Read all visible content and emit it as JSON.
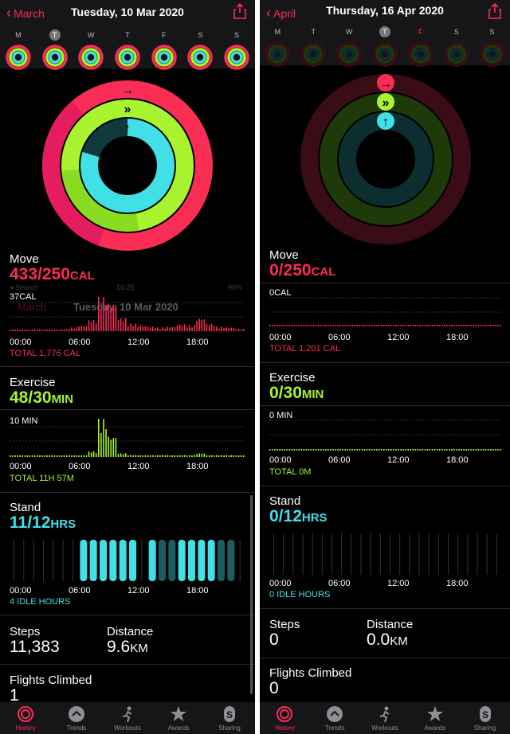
{
  "left": {
    "back_label": "March",
    "date_title": "Tuesday, 10 Mar 2020",
    "week_days": [
      "M",
      "T",
      "W",
      "T",
      "F",
      "S",
      "S"
    ],
    "today_index": 1,
    "move": {
      "title": "Move",
      "value": "433/250",
      "unit": "CAL",
      "max_label": "37CAL",
      "total": "TOTAL 1,776 CAL"
    },
    "exercise": {
      "title": "Exercise",
      "value": "48/30",
      "unit": "MIN",
      "max_label": "10 MIN",
      "total": "TOTAL 11H 57M"
    },
    "stand": {
      "title": "Stand",
      "value": "11/12",
      "unit": "HRS",
      "total": "4 IDLE HOURS"
    },
    "x_ticks": [
      "00:00",
      "06:00",
      "12:00",
      "18:00"
    ],
    "steps": {
      "label": "Steps",
      "value": "11,383"
    },
    "distance": {
      "label": "Distance",
      "value": "9.6",
      "unit": "KM"
    },
    "flights": {
      "label": "Flights Climbed",
      "value": "1"
    },
    "ghost": {
      "status_left": "◂ Search",
      "status_time": "16:25",
      "status_batt": "96%",
      "back": "March",
      "title": "Tuesday, 10 Mar 2020"
    },
    "move_hourly": [
      0.05,
      0.05,
      0.05,
      0.05,
      0.05,
      0.05,
      0.1,
      0.15,
      0.3,
      0.9,
      0.75,
      0.35,
      0.2,
      0.15,
      0.12,
      0.1,
      0.12,
      0.18,
      0.15,
      0.35,
      0.2,
      0.12,
      0.1,
      0.06
    ],
    "exercise_hourly": [
      0.02,
      0.02,
      0.02,
      0.02,
      0.02,
      0.02,
      0.03,
      0.04,
      0.15,
      1.0,
      0.55,
      0.1,
      0.05,
      0.05,
      0.05,
      0.05,
      0.05,
      0.05,
      0.05,
      0.1,
      0.05,
      0.05,
      0.05,
      0.03
    ],
    "stand_hours": [
      0,
      0,
      0,
      0,
      0,
      0,
      0,
      0,
      0,
      0,
      0,
      0,
      0,
      0,
      0,
      0,
      0,
      0,
      0,
      0,
      0,
      0,
      0,
      0
    ],
    "stand_bars": [
      1,
      1,
      1,
      1,
      1,
      1,
      0,
      1,
      0.5,
      0.5,
      1,
      1,
      1,
      1,
      0.5,
      0.5
    ]
  },
  "right": {
    "back_label": "April",
    "date_title": "Thursday, 16 Apr 2020",
    "week_days": [
      "M",
      "T",
      "W",
      "T",
      "F",
      "S",
      "S"
    ],
    "today_index": 3,
    "move": {
      "title": "Move",
      "value": "0/250",
      "unit": "CAL",
      "max_label": "0CAL",
      "total": "TOTAL 1,201 CAL"
    },
    "exercise": {
      "title": "Exercise",
      "value": "0/30",
      "unit": "MIN",
      "max_label": "0 MIN",
      "total": "TOTAL 0M"
    },
    "stand": {
      "title": "Stand",
      "value": "0/12",
      "unit": "HRS",
      "total": "0 IDLE HOURS"
    },
    "x_ticks": [
      "00:00",
      "06:00",
      "12:00",
      "18:00"
    ],
    "steps": {
      "label": "Steps",
      "value": "0"
    },
    "distance": {
      "label": "Distance",
      "value": "0.0",
      "unit": "KM"
    },
    "flights": {
      "label": "Flights Climbed",
      "value": "0"
    }
  },
  "tabs": [
    {
      "label": "History",
      "icon": "history-icon"
    },
    {
      "label": "Trends",
      "icon": "trends-icon"
    },
    {
      "label": "Workouts",
      "icon": "workouts-icon"
    },
    {
      "label": "Awards",
      "icon": "awards-icon"
    },
    {
      "label": "Sharing",
      "icon": "sharing-icon"
    }
  ],
  "colors": {
    "move": "#fa2d55",
    "exercise": "#a8f52f",
    "stand": "#40e0e6"
  }
}
